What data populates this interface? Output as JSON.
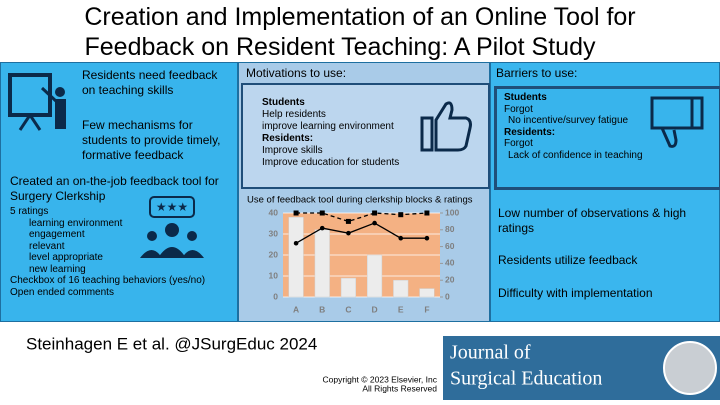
{
  "header": {
    "title_lines": [
      "Creation and Implementation of an Online Tool for",
      "Feedback on Resident Teaching: A Pilot Study"
    ]
  },
  "left": {
    "points": [
      "Residents need feedback on teaching skills",
      "Few mechanisms for students to provide timely, formative feedback"
    ],
    "tool": "Created an on-the-job feedback tool for Surgery Clerkship",
    "ratings_title": "5 ratings",
    "ratings": [
      "learning environment",
      "engagement",
      "relevant",
      "level appropriate",
      "new learning"
    ],
    "extras": [
      "Checkbox of 16 teaching behaviors (yes/no)",
      "Open ended comments"
    ]
  },
  "middle": {
    "heading": "Motivations to use:",
    "lines": [
      "Students",
      "Help residents",
      "improve learning environment",
      "Residents:",
      "Improve skills",
      "Improve education for students"
    ]
  },
  "right": {
    "heading": "Barriers to use:",
    "lines": [
      "Students",
      "Forgot",
      "No incentive/survey fatigue",
      "Residents:",
      "Forgot",
      "Lack of confidence in teaching"
    ],
    "findings": [
      "Low number of observations & high ratings",
      "Residents utilize feedback",
      "Difficulty with implementation"
    ]
  },
  "footer": {
    "citation": "Steinhagen E et al. @JSurgEduc 2024",
    "copyright": [
      "Copyright © 2023  Elsevier, Inc",
      "All Rights Reserved"
    ],
    "journal": [
      "Journal of",
      "Surgical Education"
    ]
  },
  "chart_data": {
    "type": "bar",
    "title": "Use of feedback tool during clerkship blocks & ratings",
    "categories": [
      "A",
      "B",
      "C",
      "D",
      "E",
      "F"
    ],
    "series": [
      {
        "color": "#ececec",
        "values": [
          38,
          32,
          9,
          20,
          8,
          4
        ]
      },
      {
        "type": "line",
        "axis": "y2",
        "color": "#000000",
        "line_style": "dashed",
        "marker": "square",
        "values": [
          100,
          100,
          90,
          100,
          98,
          100
        ]
      },
      {
        "type": "line",
        "axis": "y2",
        "color": "#000000",
        "line_style": "solid",
        "marker": "circle",
        "values": [
          64,
          82,
          76,
          88,
          70,
          70
        ]
      }
    ],
    "ylim": [
      0,
      40
    ],
    "yticks": [
      0,
      10,
      20,
      30,
      40
    ],
    "y2lim": [
      0,
      100
    ],
    "y2ticks": [
      0,
      20,
      40,
      60,
      80,
      100
    ],
    "plot_color": "#f4b183"
  }
}
